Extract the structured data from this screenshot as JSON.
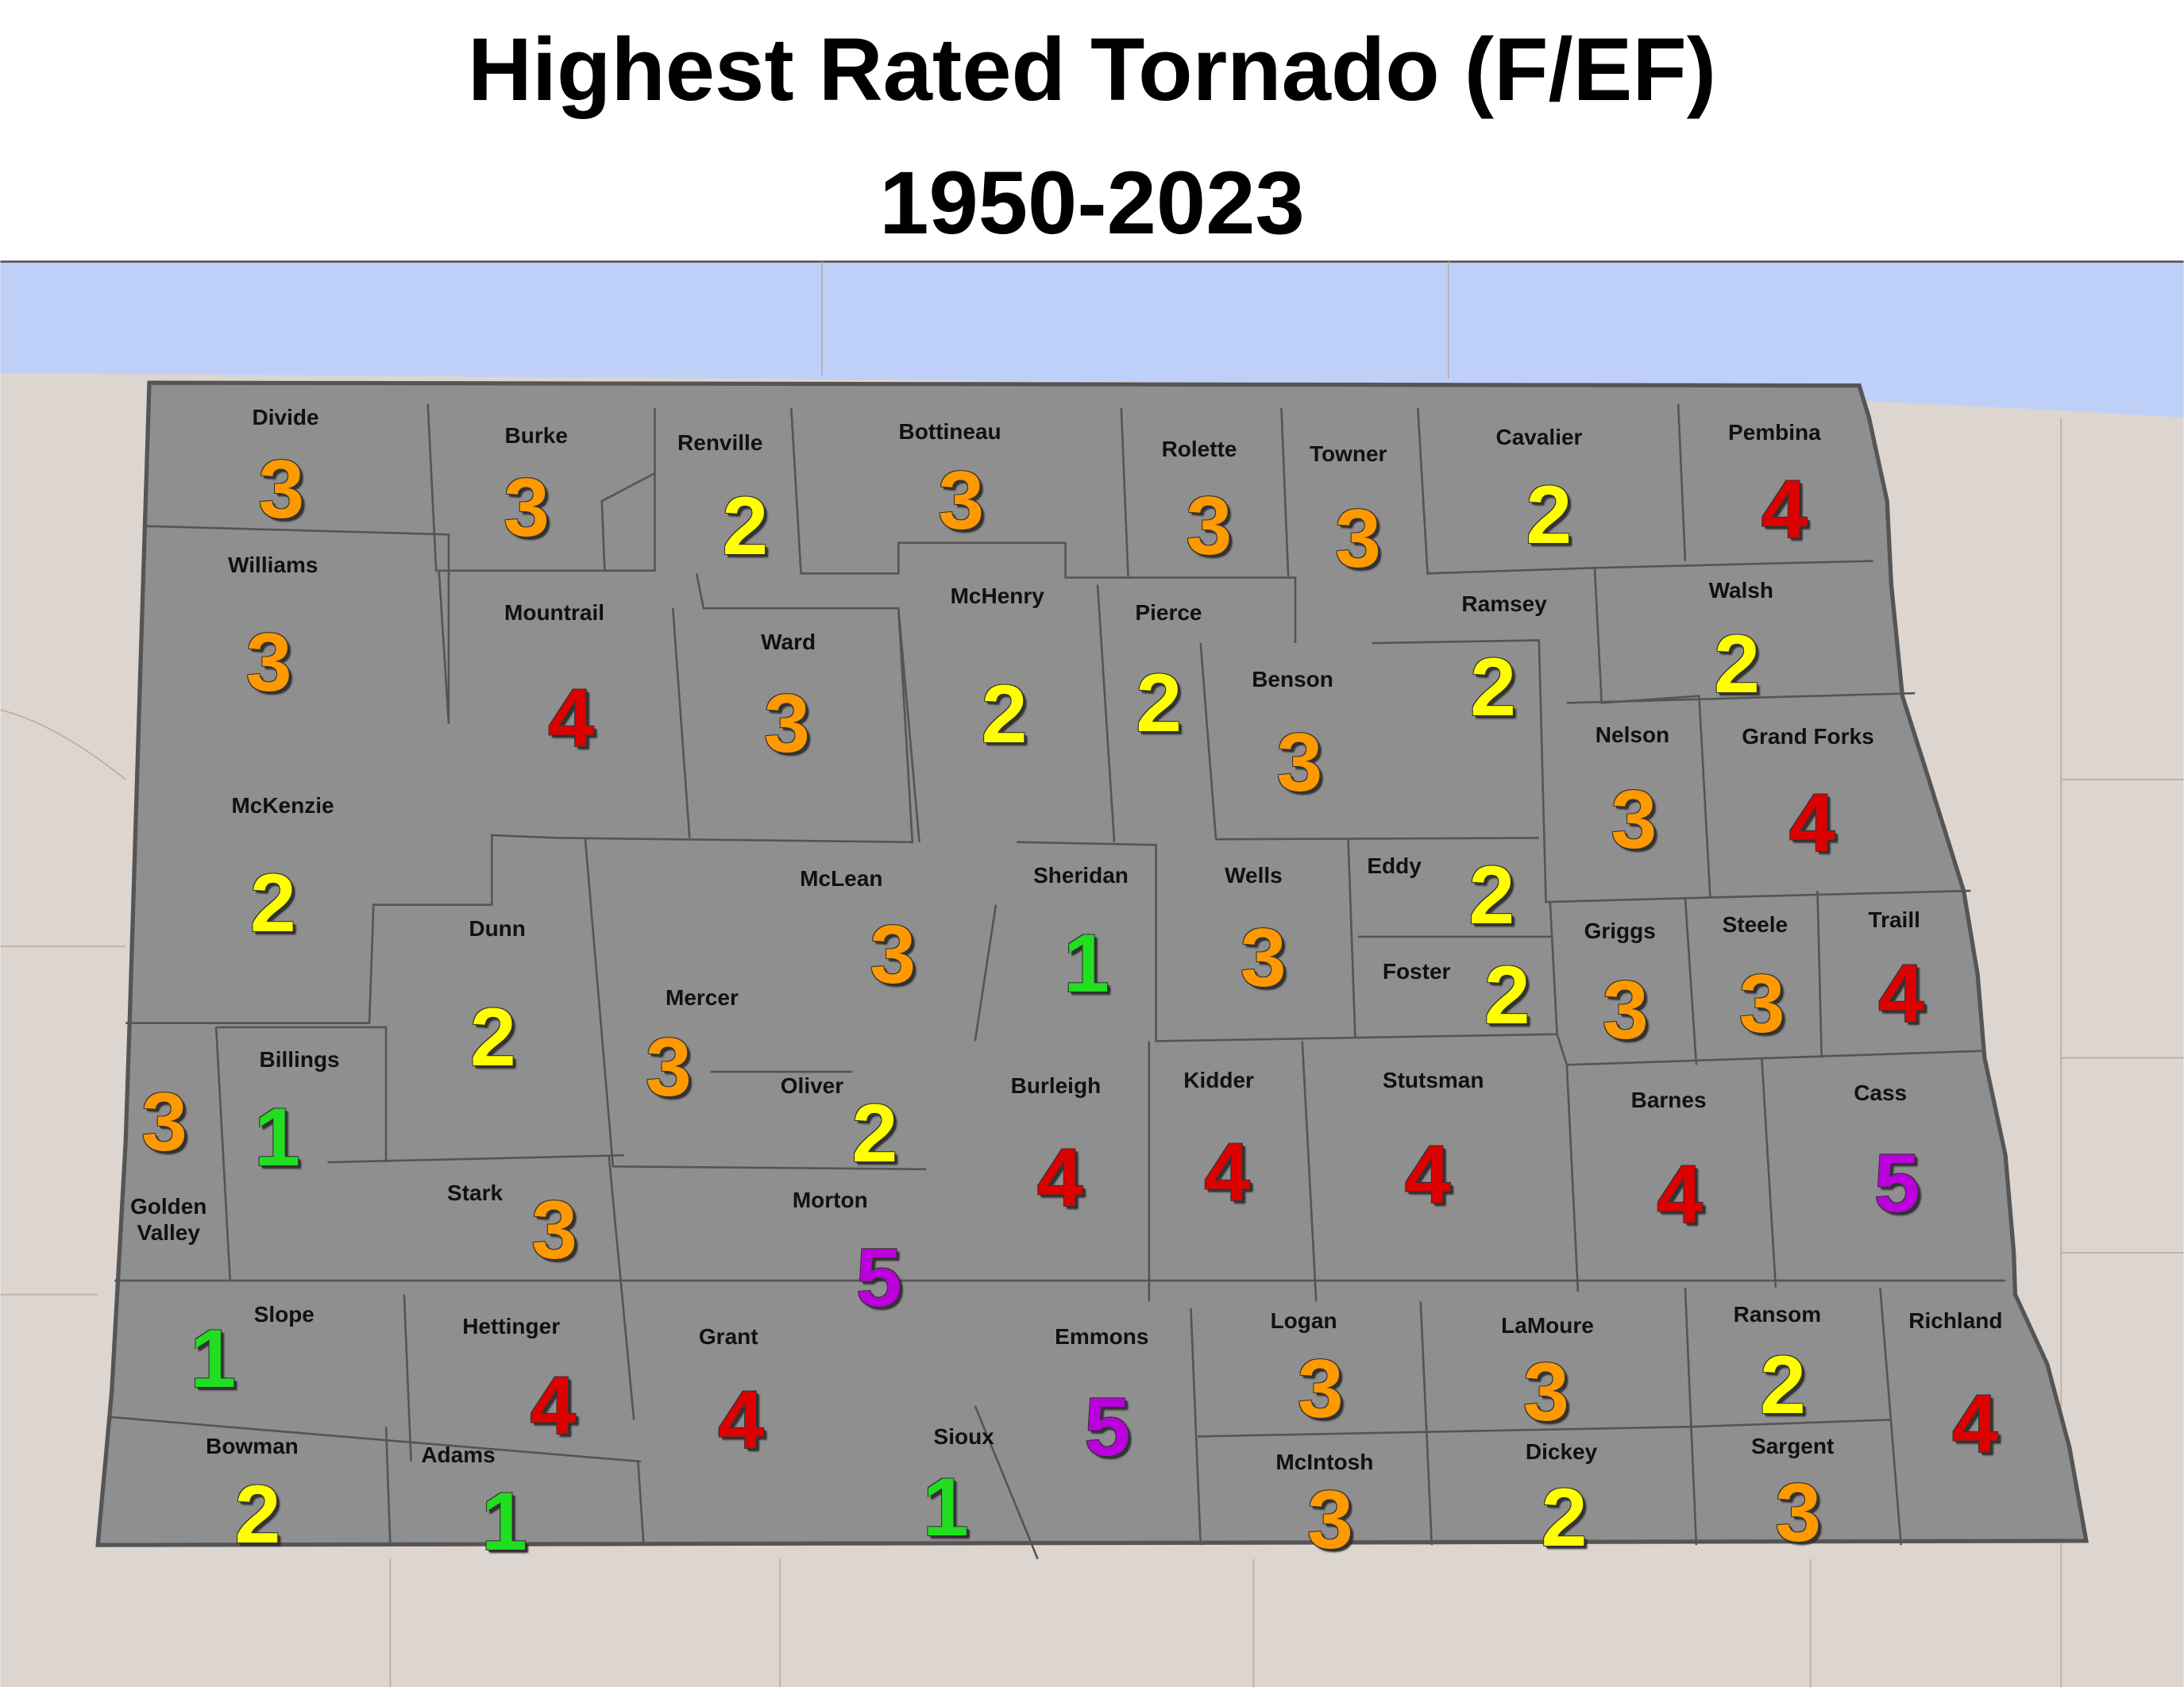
{
  "title": "Highest Rated Tornado (F/EF)",
  "subtitle": "1950-2023",
  "rating_colors": {
    "1": "#22dd22",
    "2": "#ffff00",
    "3": "#ff9900",
    "4": "#dd0000",
    "5": "#bb00dd"
  },
  "counties": [
    {
      "name": "Divide",
      "rating": 3
    },
    {
      "name": "Burke",
      "rating": 3
    },
    {
      "name": "Renville",
      "rating": 2
    },
    {
      "name": "Bottineau",
      "rating": 3
    },
    {
      "name": "Rolette",
      "rating": 3
    },
    {
      "name": "Towner",
      "rating": 3
    },
    {
      "name": "Cavalier",
      "rating": 2
    },
    {
      "name": "Pembina",
      "rating": 4
    },
    {
      "name": "Williams",
      "rating": 3
    },
    {
      "name": "Mountrail",
      "rating": 4
    },
    {
      "name": "Ward",
      "rating": 3
    },
    {
      "name": "McHenry",
      "rating": 2
    },
    {
      "name": "Pierce",
      "rating": 2
    },
    {
      "name": "Benson",
      "rating": 3
    },
    {
      "name": "Ramsey",
      "rating": 2
    },
    {
      "name": "Walsh",
      "rating": 2
    },
    {
      "name": "Nelson",
      "rating": 3
    },
    {
      "name": "Grand Forks",
      "rating": 4
    },
    {
      "name": "McKenzie",
      "rating": 2
    },
    {
      "name": "McLean",
      "rating": 3
    },
    {
      "name": "Sheridan",
      "rating": 1
    },
    {
      "name": "Wells",
      "rating": 3
    },
    {
      "name": "Eddy",
      "rating": 2
    },
    {
      "name": "Foster",
      "rating": 2
    },
    {
      "name": "Griggs",
      "rating": 3
    },
    {
      "name": "Steele",
      "rating": 3
    },
    {
      "name": "Traill",
      "rating": 4
    },
    {
      "name": "Dunn",
      "rating": 2
    },
    {
      "name": "Mercer",
      "rating": 3
    },
    {
      "name": "Billings",
      "rating": 1
    },
    {
      "name": "Golden Valley",
      "rating": 3
    },
    {
      "name": "Oliver",
      "rating": 2
    },
    {
      "name": "Burleigh",
      "rating": 4
    },
    {
      "name": "Kidder",
      "rating": 4
    },
    {
      "name": "Stutsman",
      "rating": 4
    },
    {
      "name": "Barnes",
      "rating": 4
    },
    {
      "name": "Cass",
      "rating": 5
    },
    {
      "name": "Stark",
      "rating": 3
    },
    {
      "name": "Morton",
      "rating": 5
    },
    {
      "name": "Slope",
      "rating": 1
    },
    {
      "name": "Hettinger",
      "rating": 4
    },
    {
      "name": "Grant",
      "rating": 4
    },
    {
      "name": "Emmons",
      "rating": 5
    },
    {
      "name": "Logan",
      "rating": 3
    },
    {
      "name": "LaMoure",
      "rating": 3
    },
    {
      "name": "Ransom",
      "rating": 2
    },
    {
      "name": "Richland",
      "rating": 4
    },
    {
      "name": "Bowman",
      "rating": 2
    },
    {
      "name": "Adams",
      "rating": 1
    },
    {
      "name": "Sioux",
      "rating": 1
    },
    {
      "name": "McIntosh",
      "rating": 3
    },
    {
      "name": "Dickey",
      "rating": 2
    },
    {
      "name": "Sargent",
      "rating": 3
    }
  ]
}
